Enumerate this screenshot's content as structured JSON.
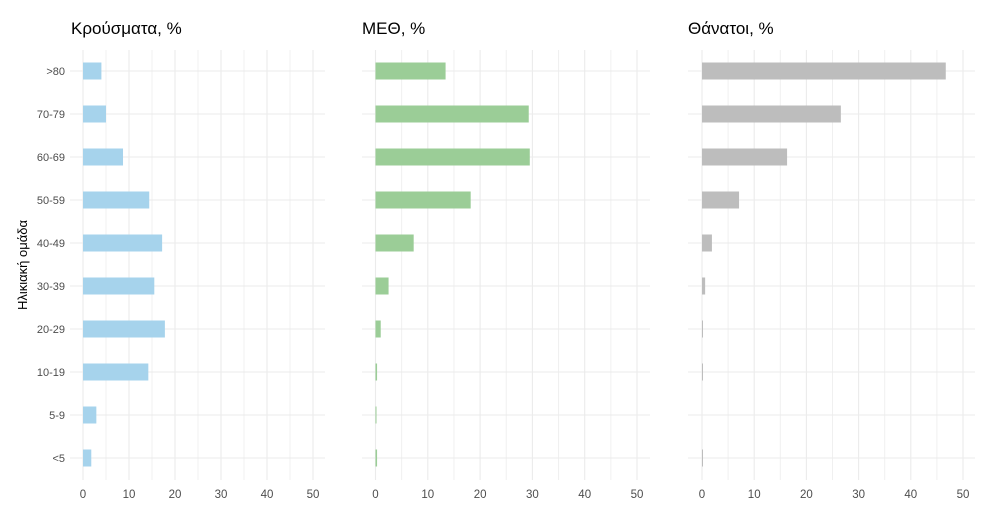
{
  "chart_data": [
    {
      "type": "bar",
      "orientation": "horizontal",
      "title": "Κρούσματα, %",
      "ylabel": "Ηλικιακή ομάδα",
      "categories": [
        ">80",
        "70-79",
        "60-69",
        "50-59",
        "40-49",
        "30-39",
        "20-29",
        "10-19",
        "5-9",
        "<5"
      ],
      "values": [
        4.0,
        5.0,
        8.7,
        14.4,
        17.2,
        15.5,
        17.8,
        14.2,
        2.9,
        1.8
      ],
      "xlim": [
        0,
        52
      ],
      "xticks": [
        0,
        10,
        20,
        30,
        40,
        50
      ],
      "color": "#a6d3ec",
      "grid": true
    },
    {
      "type": "bar",
      "orientation": "horizontal",
      "title": "ΜΕΘ, %",
      "categories": [
        ">80",
        "70-79",
        "60-69",
        "50-59",
        "40-49",
        "30-39",
        "20-29",
        "10-19",
        "5-9",
        "<5"
      ],
      "values": [
        13.4,
        29.3,
        29.5,
        18.2,
        7.3,
        2.5,
        1.0,
        0.3,
        0.1,
        0.3
      ],
      "xlim": [
        0,
        52
      ],
      "xticks": [
        0,
        10,
        20,
        30,
        40,
        50
      ],
      "color": "#9bcd97",
      "grid": true
    },
    {
      "type": "bar",
      "orientation": "horizontal",
      "title": "Θάνατοι, %",
      "categories": [
        ">80",
        "70-79",
        "60-69",
        "50-59",
        "40-49",
        "30-39",
        "20-29",
        "10-19",
        "5-9",
        "<5"
      ],
      "values": [
        46.7,
        26.6,
        16.3,
        7.1,
        1.9,
        0.6,
        0.1,
        0.1,
        0,
        0.1
      ],
      "xlim": [
        0,
        52
      ],
      "xticks": [
        0,
        10,
        20,
        30,
        40,
        50
      ],
      "color": "#bdbdbd",
      "grid": true
    }
  ]
}
